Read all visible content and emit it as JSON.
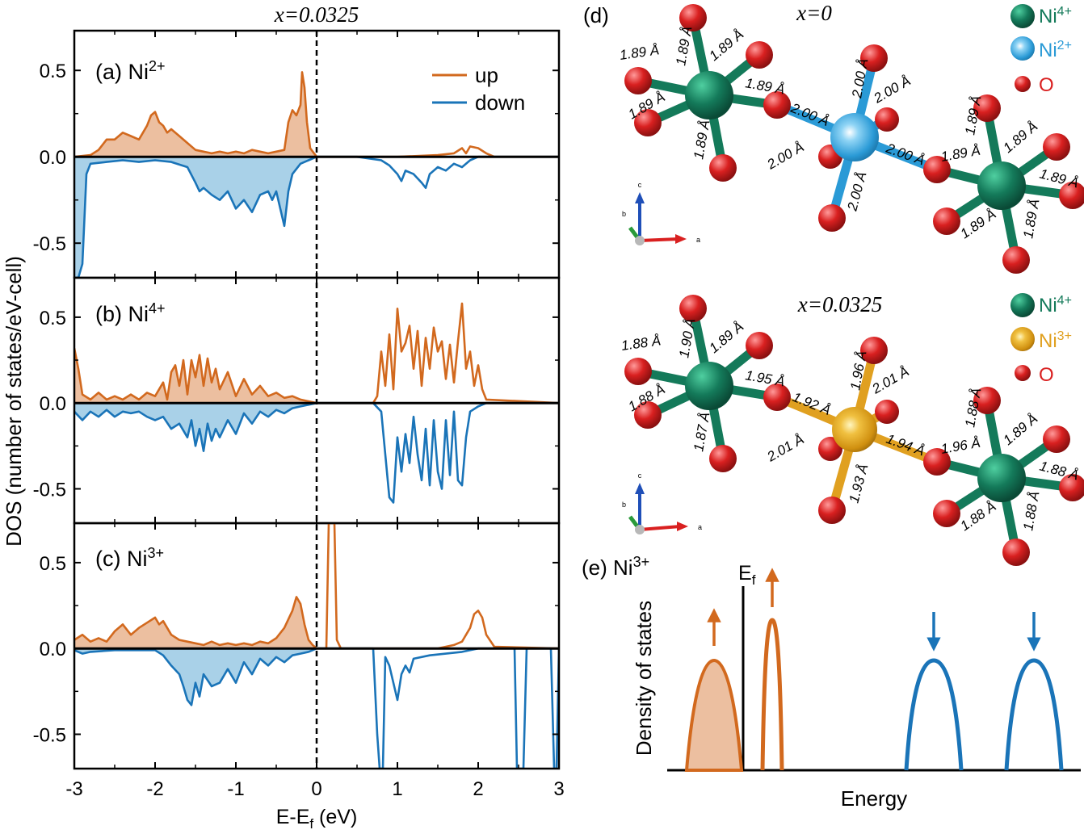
{
  "colors": {
    "up": "#d2691e",
    "up_fill": "#ecbfa0",
    "down": "#1a74b8",
    "down_fill": "#a9d1e8",
    "ni4": "#147a5a",
    "ni2": "#2a9ad6",
    "ni3": "#e0a020",
    "oxygen": "#d92020",
    "axis": "#000000"
  },
  "left": {
    "title": "x=0.0325",
    "ylabel": "DOS (number of states/eV-cell)",
    "xlabel": "E-E",
    "xlabel_sub": "f",
    "xlabel_unit": " (eV)",
    "legend": {
      "up": "up",
      "down": "down"
    },
    "xticks": [
      "-3",
      "-2",
      "-1",
      "0",
      "1",
      "2",
      "3"
    ],
    "yticks": [
      "0.5",
      "0.0",
      "-0.5"
    ],
    "panels": [
      {
        "label": "(a) Ni",
        "sup": "2+"
      },
      {
        "label": "(b) Ni",
        "sup": "4+"
      },
      {
        "label": "(c) Ni",
        "sup": "3+"
      }
    ]
  },
  "right": {
    "d_label": "(d)",
    "top": {
      "title": "x=0",
      "legend": [
        {
          "name": "Ni",
          "sup": "4+"
        },
        {
          "name": "Ni",
          "sup": "2+"
        },
        {
          "name": "O",
          "sup": ""
        }
      ],
      "bonds_left": [
        "1.89 Å",
        "1.89 Å",
        "1.89 Å",
        "1.89 Å",
        "1.89 Å",
        "1.89 Å"
      ],
      "bonds_center": [
        "2.00 Å",
        "2.00 Å",
        "2.00 Å",
        "2.00 Å",
        "2.00 Å",
        "2.00 Å"
      ],
      "bonds_right": [
        "1.89 Å",
        "1.89 Å",
        "1.89 Å",
        "1.89 Å",
        "1.89 Å",
        "1.89 Å"
      ]
    },
    "bottom": {
      "title": "x=0.0325",
      "legend": [
        {
          "name": "Ni",
          "sup": "4+"
        },
        {
          "name": "Ni",
          "sup": "3+"
        },
        {
          "name": "O",
          "sup": ""
        }
      ],
      "bonds_left": [
        "1.88 Å",
        "1.90 Å",
        "1.89 Å",
        "1.95 Å",
        "1.88 Å",
        "1.87 Å"
      ],
      "bonds_center": [
        "1.92 Å",
        "1.96 Å",
        "2.01 Å",
        "2.01 Å",
        "1.94 Å",
        "1.93 Å"
      ],
      "bonds_right": [
        "1.96 Å",
        "1.88 Å",
        "1.89 Å",
        "1.88 Å",
        "1.88 Å",
        "1.88 Å"
      ]
    },
    "axes_labels": {
      "a": "a",
      "b": "b",
      "c": "c"
    },
    "e": {
      "label": "(e) Ni",
      "sup": "3+",
      "ylabel": "Density of states",
      "xlabel": "Energy",
      "ef": "E",
      "ef_sub": "f"
    }
  },
  "chart_data": [
    {
      "type": "line",
      "title": "(a) Ni2+",
      "xlim": [
        -3,
        3
      ],
      "ylim": [
        -0.7,
        0.73
      ],
      "series": [
        {
          "name": "up",
          "x": [
            -3,
            -2.8,
            -2.7,
            -2.6,
            -2.5,
            -2.4,
            -2.3,
            -2.2,
            -2.1,
            -2.05,
            -2.0,
            -1.95,
            -1.9,
            -1.85,
            -1.8,
            -1.7,
            -1.6,
            -1.5,
            -1.4,
            -1.3,
            -1.2,
            -1.1,
            -1.0,
            -0.9,
            -0.8,
            -0.7,
            -0.6,
            -0.5,
            -0.4,
            -0.35,
            -0.3,
            -0.25,
            -0.2,
            -0.18,
            -0.15,
            -0.12,
            -0.08,
            0,
            0.5,
            1.0,
            1.5,
            1.7,
            1.8,
            1.85,
            1.9,
            2.0,
            2.1,
            2.2,
            3.0
          ],
          "y": [
            0,
            0.01,
            0.04,
            0.1,
            0.1,
            0.14,
            0.12,
            0.1,
            0.18,
            0.24,
            0.26,
            0.2,
            0.18,
            0.14,
            0.16,
            0.12,
            0.08,
            0.04,
            0.03,
            0.02,
            0.03,
            0.02,
            0.03,
            0.02,
            0.04,
            0.03,
            0.02,
            0.03,
            0.04,
            0.2,
            0.27,
            0.24,
            0.3,
            0.49,
            0.4,
            0.2,
            0.05,
            0,
            0,
            0,
            0.01,
            0.02,
            0.05,
            0.02,
            0.06,
            0.05,
            0.02,
            0,
            0
          ]
        },
        {
          "name": "down",
          "x": [
            -3,
            -2.95,
            -2.9,
            -2.85,
            -2.8,
            -2.6,
            -2.4,
            -2.2,
            -2.0,
            -1.8,
            -1.6,
            -1.5,
            -1.45,
            -1.4,
            -1.3,
            -1.2,
            -1.1,
            -1.0,
            -0.9,
            -0.8,
            -0.7,
            -0.6,
            -0.55,
            -0.5,
            -0.45,
            -0.4,
            -0.35,
            -0.3,
            -0.2,
            -0.1,
            0,
            0.5,
            0.8,
            0.9,
            1.0,
            1.05,
            1.1,
            1.2,
            1.3,
            1.35,
            1.4,
            1.5,
            1.6,
            1.7,
            1.8,
            1.9,
            2.0,
            2.5,
            3.0
          ],
          "y": [
            -0.7,
            -0.7,
            -0.62,
            -0.1,
            -0.04,
            -0.03,
            -0.02,
            -0.03,
            -0.02,
            -0.03,
            -0.06,
            -0.15,
            -0.2,
            -0.18,
            -0.22,
            -0.25,
            -0.2,
            -0.3,
            -0.25,
            -0.32,
            -0.22,
            -0.2,
            -0.25,
            -0.2,
            -0.3,
            -0.4,
            -0.2,
            -0.1,
            -0.04,
            -0.02,
            0,
            0,
            -0.02,
            -0.05,
            -0.1,
            -0.14,
            -0.08,
            -0.1,
            -0.15,
            -0.18,
            -0.1,
            -0.06,
            -0.08,
            -0.04,
            -0.06,
            -0.02,
            0,
            0,
            0
          ]
        }
      ]
    },
    {
      "type": "line",
      "title": "(b) Ni4+",
      "xlim": [
        -3,
        3
      ],
      "ylim": [
        -0.7,
        0.73
      ],
      "series": [
        {
          "name": "up",
          "x": [
            -3,
            -2.95,
            -2.9,
            -2.8,
            -2.7,
            -2.6,
            -2.5,
            -2.4,
            -2.3,
            -2.2,
            -2.1,
            -2.0,
            -1.9,
            -1.85,
            -1.8,
            -1.75,
            -1.7,
            -1.65,
            -1.6,
            -1.55,
            -1.5,
            -1.45,
            -1.4,
            -1.35,
            -1.3,
            -1.25,
            -1.2,
            -1.1,
            -1.0,
            -0.9,
            -0.8,
            -0.7,
            -0.6,
            -0.5,
            -0.4,
            -0.3,
            -0.2,
            0,
            0.7,
            0.75,
            0.8,
            0.85,
            0.9,
            0.95,
            1.0,
            1.05,
            1.1,
            1.15,
            1.2,
            1.25,
            1.3,
            1.35,
            1.4,
            1.45,
            1.5,
            1.55,
            1.6,
            1.65,
            1.7,
            1.75,
            1.8,
            1.85,
            1.9,
            1.95,
            2.0,
            2.05,
            2.1,
            3.0
          ],
          "y": [
            0.32,
            0.2,
            0.05,
            0.02,
            0.06,
            0.02,
            0.04,
            0.02,
            0.05,
            0.02,
            0.06,
            0.04,
            0.12,
            0.02,
            0.18,
            0.22,
            0.1,
            0.25,
            0.05,
            0.25,
            0.15,
            0.28,
            0.1,
            0.26,
            0.12,
            0.2,
            0.08,
            0.18,
            0.04,
            0.14,
            0.05,
            0.1,
            0.04,
            0.06,
            0.03,
            0.04,
            0.02,
            0,
            0,
            0.04,
            0.3,
            0.1,
            0.4,
            0.08,
            0.55,
            0.3,
            0.35,
            0.45,
            0.2,
            0.42,
            0.1,
            0.38,
            0.2,
            0.44,
            0.3,
            0.36,
            0.14,
            0.34,
            0.12,
            0.36,
            0.58,
            0.2,
            0.3,
            0.1,
            0.22,
            0.08,
            0.02,
            0
          ]
        },
        {
          "name": "down",
          "x": [
            -3,
            -2.9,
            -2.8,
            -2.7,
            -2.6,
            -2.5,
            -2.4,
            -2.3,
            -2.2,
            -2.1,
            -2.0,
            -1.9,
            -1.8,
            -1.7,
            -1.6,
            -1.55,
            -1.5,
            -1.45,
            -1.4,
            -1.35,
            -1.3,
            -1.25,
            -1.2,
            -1.1,
            -1.0,
            -0.9,
            -0.8,
            -0.7,
            -0.6,
            -0.5,
            -0.4,
            -0.3,
            -0.2,
            -0.1,
            0,
            0.7,
            0.8,
            0.85,
            0.9,
            0.95,
            1.0,
            1.05,
            1.1,
            1.15,
            1.2,
            1.25,
            1.3,
            1.35,
            1.4,
            1.45,
            1.5,
            1.55,
            1.6,
            1.65,
            1.7,
            1.75,
            1.8,
            1.85,
            1.9,
            2.0,
            2.1,
            3.0
          ],
          "y": [
            -0.05,
            -0.1,
            -0.05,
            -0.08,
            -0.04,
            -0.08,
            -0.05,
            -0.06,
            -0.05,
            -0.08,
            -0.1,
            -0.08,
            -0.15,
            -0.12,
            -0.2,
            -0.1,
            -0.25,
            -0.15,
            -0.28,
            -0.12,
            -0.22,
            -0.15,
            -0.2,
            -0.1,
            -0.18,
            -0.06,
            -0.12,
            -0.05,
            -0.08,
            -0.04,
            -0.06,
            -0.03,
            -0.02,
            -0.01,
            0,
            0,
            -0.05,
            -0.3,
            -0.55,
            -0.58,
            -0.2,
            -0.4,
            -0.18,
            -0.35,
            -0.08,
            -0.3,
            -0.45,
            -0.15,
            -0.48,
            -0.1,
            -0.4,
            -0.5,
            -0.1,
            -0.42,
            -0.05,
            -0.45,
            -0.48,
            -0.2,
            -0.05,
            -0.02,
            0,
            0
          ]
        }
      ]
    },
    {
      "type": "line",
      "title": "(c) Ni3+",
      "xlim": [
        -3,
        3
      ],
      "ylim": [
        -0.7,
        0.73
      ],
      "series": [
        {
          "name": "up",
          "x": [
            -3,
            -2.9,
            -2.8,
            -2.7,
            -2.6,
            -2.5,
            -2.4,
            -2.3,
            -2.2,
            -2.1,
            -2.0,
            -1.95,
            -1.9,
            -1.8,
            -1.7,
            -1.6,
            -1.5,
            -1.4,
            -1.3,
            -1.2,
            -1.1,
            -1.0,
            -0.9,
            -0.8,
            -0.7,
            -0.6,
            -0.5,
            -0.4,
            -0.3,
            -0.25,
            -0.2,
            -0.15,
            -0.1,
            -0.05,
            0,
            0.12,
            0.15,
            0.18,
            0.22,
            0.25,
            0.3,
            1.0,
            1.5,
            1.7,
            1.8,
            1.9,
            1.95,
            2.0,
            2.05,
            2.1,
            2.2,
            3.0
          ],
          "y": [
            0.05,
            0.08,
            0.04,
            0.06,
            0.04,
            0.1,
            0.14,
            0.08,
            0.12,
            0.15,
            0.18,
            0.14,
            0.16,
            0.08,
            0.05,
            0.04,
            0.03,
            0.02,
            0.04,
            0.02,
            0.03,
            0.02,
            0.03,
            0.02,
            0.04,
            0.03,
            0.06,
            0.12,
            0.22,
            0.3,
            0.26,
            0.14,
            0.05,
            0.02,
            0,
            0,
            0.73,
            0.73,
            0.73,
            0.05,
            0,
            0,
            0,
            0.02,
            0.04,
            0.12,
            0.2,
            0.22,
            0.18,
            0.08,
            0.01,
            0
          ]
        },
        {
          "name": "down",
          "x": [
            -3,
            -2.9,
            -2.8,
            -2.5,
            -2.0,
            -1.9,
            -1.8,
            -1.7,
            -1.65,
            -1.6,
            -1.55,
            -1.5,
            -1.45,
            -1.4,
            -1.3,
            -1.2,
            -1.1,
            -1.0,
            -0.9,
            -0.8,
            -0.7,
            -0.6,
            -0.5,
            -0.4,
            -0.3,
            -0.2,
            -0.1,
            0,
            0.7,
            0.75,
            0.78,
            0.82,
            0.85,
            0.9,
            0.95,
            1.0,
            1.05,
            1.1,
            1.15,
            1.2,
            1.4,
            1.6,
            1.8,
            2.0,
            2.2,
            2.45,
            2.48,
            2.52,
            2.56,
            2.6,
            2.9,
            2.94,
            2.97,
            3.0
          ],
          "y": [
            -0.01,
            -0.03,
            -0.02,
            -0.01,
            -0.01,
            -0.04,
            -0.1,
            -0.15,
            -0.22,
            -0.3,
            -0.33,
            -0.2,
            -0.28,
            -0.15,
            -0.22,
            -0.2,
            -0.12,
            -0.2,
            -0.08,
            -0.15,
            -0.06,
            -0.1,
            -0.05,
            -0.08,
            -0.04,
            -0.03,
            -0.02,
            0,
            0,
            -0.5,
            -0.7,
            -0.7,
            -0.05,
            -0.1,
            -0.2,
            -0.3,
            -0.15,
            -0.1,
            -0.14,
            -0.06,
            -0.04,
            -0.03,
            -0.02,
            0,
            0,
            0,
            -0.7,
            -0.7,
            -0.7,
            0,
            0,
            -0.7,
            -0.7,
            0
          ]
        }
      ]
    }
  ]
}
